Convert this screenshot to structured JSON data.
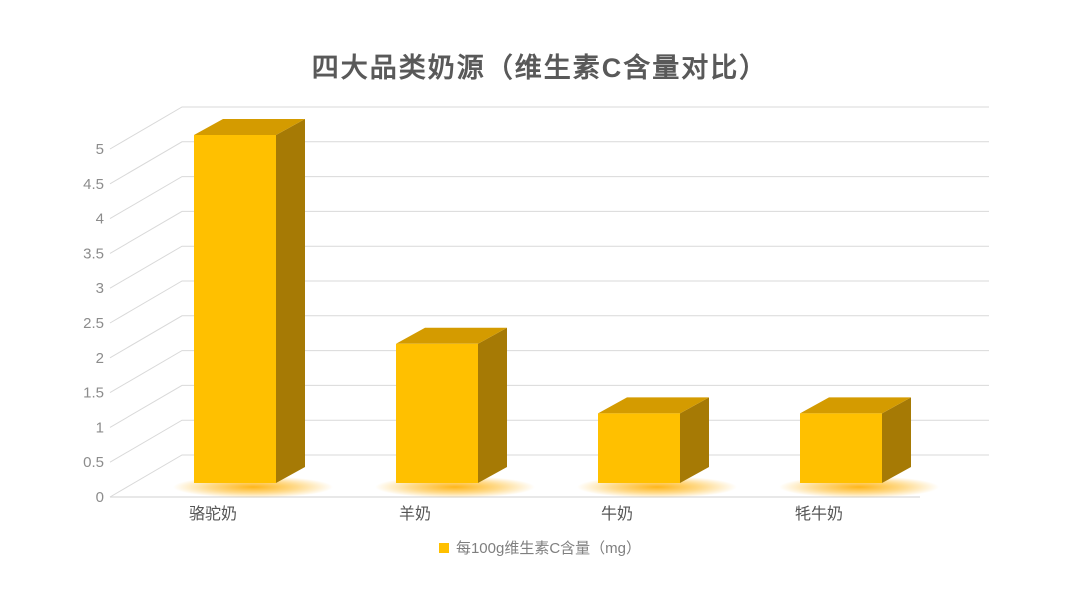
{
  "title": "四大品类奶源（维生素C含量对比）",
  "legend": {
    "marker_color": "#FFC000",
    "label": "每100g维生素C含量（mg）"
  },
  "chart_data": {
    "type": "bar",
    "style": "3d-column",
    "title": "四大品类奶源（维生素C含量对比）",
    "categories": [
      "骆驼奶",
      "羊奶",
      "牛奶",
      "牦牛奶"
    ],
    "values": [
      5,
      2,
      1,
      1
    ],
    "series": [
      {
        "name": "每100g维生素C含量（mg）",
        "values": [
          5,
          2,
          1,
          1
        ]
      }
    ],
    "xlabel": "",
    "ylabel": "",
    "ylim": [
      0,
      5
    ],
    "ytick_step": 0.5,
    "yticks": [
      "0",
      "0.5",
      "1",
      "1.5",
      "2",
      "2.5",
      "3",
      "3.5",
      "4",
      "4.5",
      "5"
    ],
    "grid": true,
    "legend_position": "bottom",
    "colors": {
      "bar_front": "#FFC000",
      "bar_top": "#D49B00",
      "bar_side": "#A67A05",
      "glow": "#FFAE00",
      "gridline": "#D9D9D9",
      "axis_text": "#8C8C8C",
      "category_text": "#555555",
      "title_text": "#595959",
      "legend_text": "#7F7F7F",
      "background": "#FFFFFF"
    }
  }
}
